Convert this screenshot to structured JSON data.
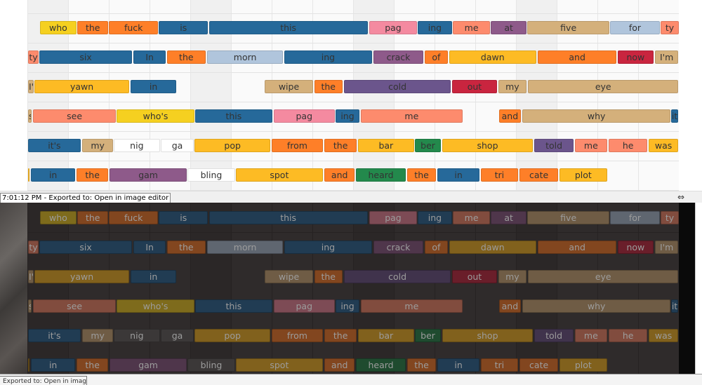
{
  "status_bar": {
    "text": "7:01:12 PM - Exported to: Open in image editor",
    "resize_icon": "horizontal-resize-icon"
  },
  "bottom_tab": {
    "text": "Exported to: Open in image editor"
  },
  "timeline": {
    "beats": 16,
    "shaded_every": 4
  },
  "palette": {
    "yellow": "#f5d020",
    "orange": "#fe7f28",
    "blue": "#26699a",
    "pink": "#f48aa0",
    "salmon": "#fd8b6d",
    "purple": "#8e5a8a",
    "tan": "#d4b07b",
    "lightblue": "#b0c5dc",
    "crimson": "#c9253f",
    "gold": "#fdbb24",
    "green": "#23894c",
    "violet": "#6b558c",
    "white": "#ffffff"
  },
  "rows": [
    [
      [
        "who",
        0.29,
        1.19,
        "yellow"
      ],
      [
        "the",
        1.21,
        1.97,
        "orange"
      ],
      [
        "fuck",
        1.99,
        3.19,
        "orange"
      ],
      [
        "is",
        3.21,
        4.42,
        "blue"
      ],
      [
        "this",
        4.44,
        8.34,
        "blue"
      ],
      [
        "pag",
        8.38,
        9.55,
        "pink"
      ],
      [
        "ing",
        9.57,
        10.41,
        "blue"
      ],
      [
        "me",
        10.43,
        11.35,
        "salmon"
      ],
      [
        "at",
        11.36,
        12.25,
        "purple"
      ],
      [
        "five",
        12.26,
        14.28,
        "tan"
      ],
      [
        "for",
        14.3,
        15.51,
        "lightblue"
      ],
      [
        "ty",
        15.53,
        15.99,
        "salmon"
      ]
    ],
    [
      [
        "ty",
        0,
        0.26,
        "salmon"
      ],
      [
        "six",
        0.28,
        2.55,
        "blue"
      ],
      [
        "In",
        2.59,
        3.38,
        "blue"
      ],
      [
        "the",
        3.41,
        4.36,
        "orange"
      ],
      [
        "morn",
        4.4,
        6.26,
        "lightblue"
      ],
      [
        "ing",
        6.29,
        8.45,
        "blue"
      ],
      [
        "crack",
        8.48,
        9.71,
        "purple"
      ],
      [
        "of",
        9.74,
        10.31,
        "orange"
      ],
      [
        "dawn",
        10.34,
        12.48,
        "gold"
      ],
      [
        "and",
        12.52,
        14.45,
        "orange"
      ],
      [
        "now",
        14.48,
        15.36,
        "crimson"
      ],
      [
        "I'm",
        15.4,
        15.97,
        "tan"
      ]
    ],
    [
      [
        "I'm",
        0,
        0.14,
        "tan"
      ],
      [
        "yawn",
        0.16,
        2.48,
        "gold"
      ],
      [
        "in",
        2.52,
        3.64,
        "blue"
      ],
      [
        "wipe",
        5.81,
        7.0,
        "tan"
      ],
      [
        "the",
        7.03,
        7.72,
        "orange"
      ],
      [
        "cold",
        7.76,
        10.38,
        "violet"
      ],
      [
        "out",
        10.41,
        11.52,
        "crimson"
      ],
      [
        "my",
        11.55,
        12.24,
        "tan"
      ],
      [
        "eye",
        12.28,
        15.97,
        "tan"
      ]
    ],
    [
      [
        "see",
        0,
        0.09,
        "tan"
      ],
      [
        "see",
        0.12,
        2.16,
        "salmon"
      ],
      [
        "who's",
        2.17,
        4.09,
        "yellow"
      ],
      [
        "this",
        4.1,
        6.0,
        "blue"
      ],
      [
        "pag",
        6.03,
        7.53,
        "pink"
      ],
      [
        "ing",
        7.55,
        8.14,
        "blue"
      ],
      [
        "me",
        8.17,
        10.67,
        "salmon"
      ],
      [
        "and",
        11.57,
        12.1,
        "orange"
      ],
      [
        "why",
        12.14,
        15.78,
        "tan"
      ],
      [
        "it's",
        15.79,
        15.97,
        "blue"
      ]
    ],
    [
      [
        "it's",
        0,
        1.29,
        "blue"
      ],
      [
        "my",
        1.33,
        2.09,
        "tan"
      ],
      [
        "nig",
        2.1,
        3.24,
        "white"
      ],
      [
        "ga",
        3.26,
        4.07,
        "white"
      ],
      [
        "pop",
        4.09,
        5.95,
        "gold"
      ],
      [
        "from",
        5.98,
        7.24,
        "orange"
      ],
      [
        "the",
        7.28,
        8.07,
        "orange"
      ],
      [
        "bar",
        8.1,
        9.48,
        "gold"
      ],
      [
        "ber",
        9.5,
        10.14,
        "green"
      ],
      [
        "shop",
        10.17,
        12.4,
        "gold"
      ],
      [
        "told",
        12.43,
        13.4,
        "violet"
      ],
      [
        "me",
        13.43,
        14.22,
        "salmon"
      ],
      [
        "he",
        14.26,
        15.21,
        "salmon"
      ],
      [
        "was",
        15.24,
        15.97,
        "gold"
      ]
    ],
    [
      [
        "w",
        0,
        0.03,
        "gold"
      ],
      [
        "in",
        0.07,
        1.16,
        "blue"
      ],
      [
        "the",
        1.19,
        1.97,
        "orange"
      ],
      [
        "gam",
        2.0,
        3.9,
        "purple"
      ],
      [
        "bling",
        3.91,
        5.09,
        "white"
      ],
      [
        "spot",
        5.1,
        7.24,
        "gold"
      ],
      [
        "and",
        7.28,
        8.02,
        "orange"
      ],
      [
        "heard",
        8.05,
        9.28,
        "green"
      ],
      [
        "the",
        9.31,
        10.02,
        "orange"
      ],
      [
        "in",
        10.05,
        11.09,
        "blue"
      ],
      [
        "tri",
        11.12,
        12.03,
        "orange"
      ],
      [
        "cate",
        12.07,
        13.02,
        "orange"
      ],
      [
        "plot",
        13.05,
        14.22,
        "gold"
      ]
    ]
  ]
}
